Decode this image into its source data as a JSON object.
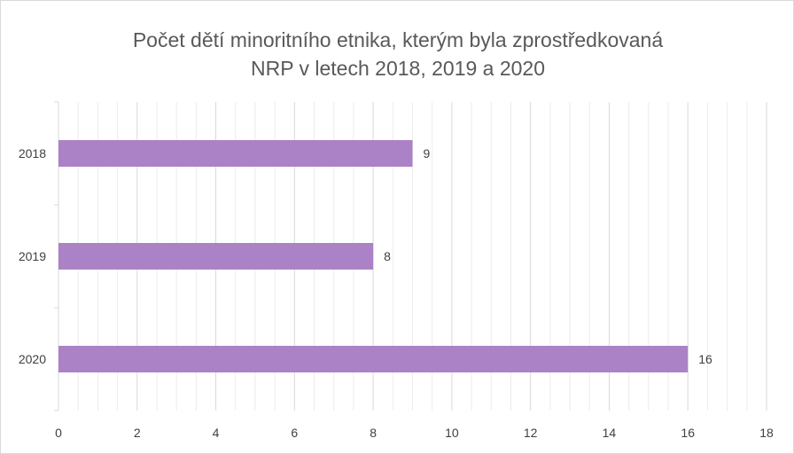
{
  "chart_data": {
    "type": "bar",
    "orientation": "horizontal",
    "title": [
      "Počet dětí minoritního etnika, kterým byla zprostředkovaná",
      "NRP v letech 2018, 2019 a 2020"
    ],
    "categories": [
      "2018",
      "2019",
      "2020"
    ],
    "values": [
      9,
      8,
      16
    ],
    "data_labels": [
      "9",
      "8",
      "16"
    ],
    "xlim": [
      0,
      18
    ],
    "x_ticks": [
      "0",
      "2",
      "4",
      "6",
      "8",
      "10",
      "12",
      "14",
      "16",
      "18"
    ],
    "grid": true,
    "legend": "none",
    "bar_color": "#ab82c5"
  }
}
